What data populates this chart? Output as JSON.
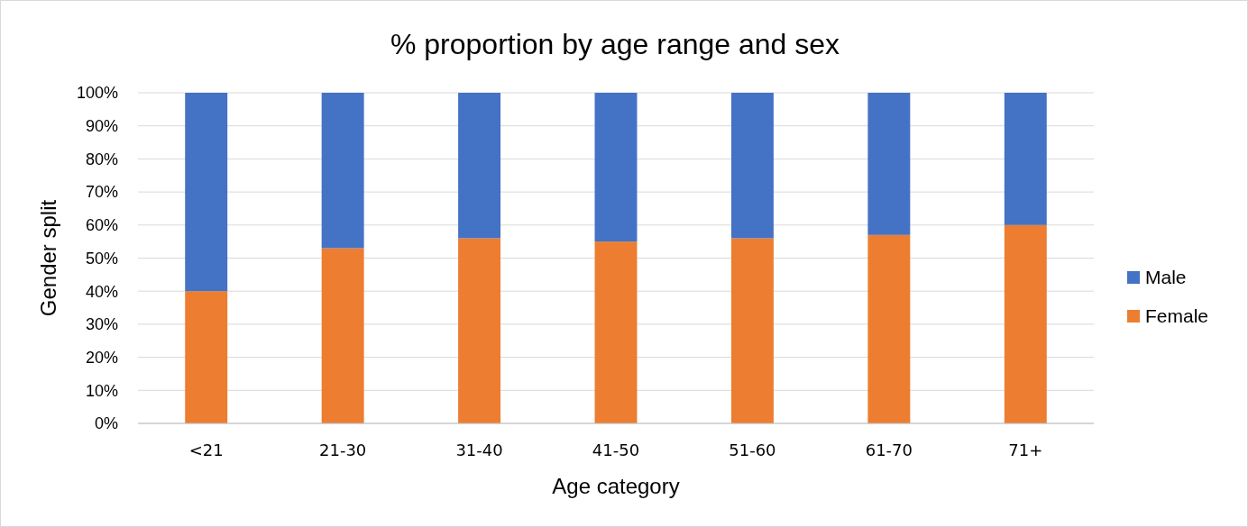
{
  "chart_data": {
    "type": "bar",
    "title": "% proportion by age range and sex",
    "xlabel": "Age category",
    "ylabel": "Gender split",
    "categories": [
      "<21",
      "21-30",
      "31-40",
      "41-50",
      "51-60",
      "61-70",
      "71+"
    ],
    "series": [
      {
        "name": "Female",
        "color": "#ed7d31",
        "values": [
          40,
          53,
          56,
          55,
          56,
          57,
          60
        ]
      },
      {
        "name": "Male",
        "color": "#4472c4",
        "values": [
          60,
          47,
          44,
          45,
          44,
          43,
          40
        ]
      }
    ],
    "stacked": true,
    "ylim": [
      0,
      100
    ],
    "yticks": [
      {
        "value": 0,
        "label": "0%"
      },
      {
        "value": 10,
        "label": "10%"
      },
      {
        "value": 20,
        "label": "20%"
      },
      {
        "value": 30,
        "label": "30%"
      },
      {
        "value": 40,
        "label": "40%"
      },
      {
        "value": 50,
        "label": "50%"
      },
      {
        "value": 60,
        "label": "60%"
      },
      {
        "value": 70,
        "label": "70%"
      },
      {
        "value": 80,
        "label": "80%"
      },
      {
        "value": 90,
        "label": "90%"
      },
      {
        "value": 100,
        "label": "100%"
      }
    ],
    "grid": "y",
    "legend": "right"
  }
}
